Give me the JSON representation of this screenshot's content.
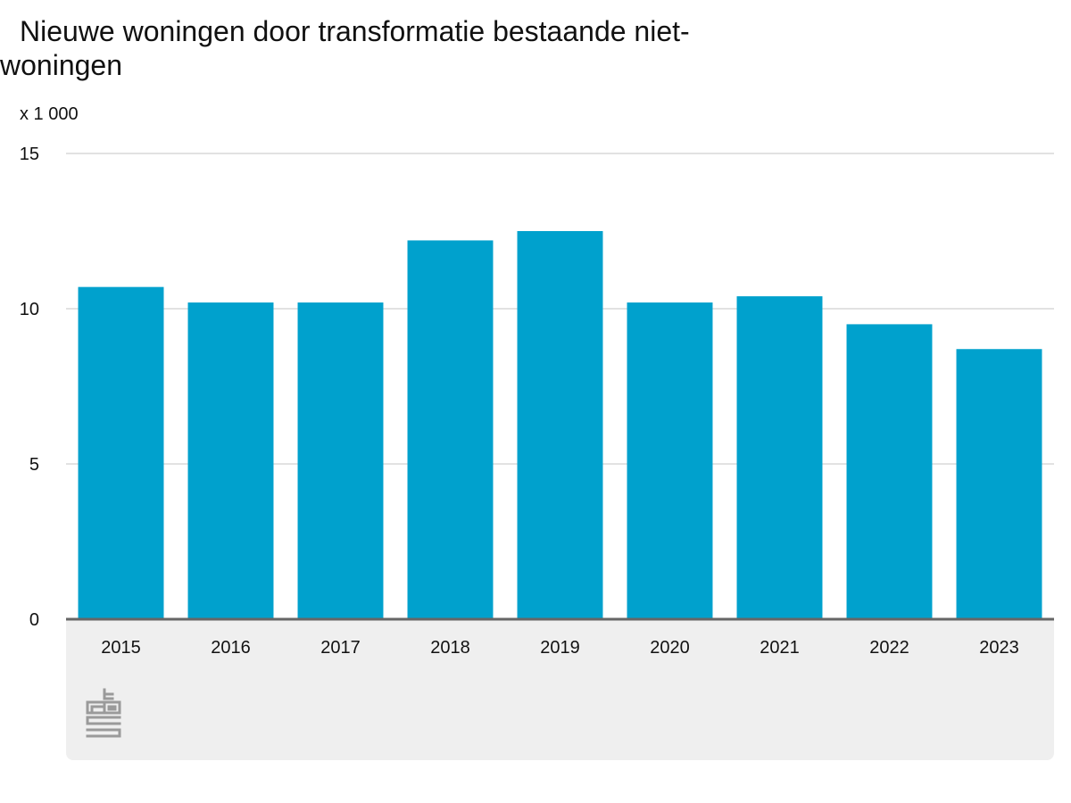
{
  "chart_data": {
    "type": "bar",
    "title": "Nieuwe woningen door transformatie bestaande niet-woningen",
    "unit_label": "x 1 000",
    "categories": [
      "2015",
      "2016",
      "2017",
      "2018",
      "2019",
      "2020",
      "2021",
      "2022",
      "2023"
    ],
    "values": [
      10.7,
      10.2,
      10.2,
      12.2,
      12.5,
      10.2,
      10.4,
      9.5,
      8.7
    ],
    "ylim": [
      0,
      15
    ],
    "yticks": [
      0,
      5,
      10,
      15
    ],
    "grid": true,
    "legend": "none",
    "colors": {
      "bar": "#00a1cd",
      "grid": "#d9d9d9",
      "baseline": "#666666",
      "panel": "#efefef",
      "logo": "#9a9a9a"
    }
  },
  "branding": {
    "logo_name": "cbs-logo",
    "logo_text": "cbs"
  }
}
